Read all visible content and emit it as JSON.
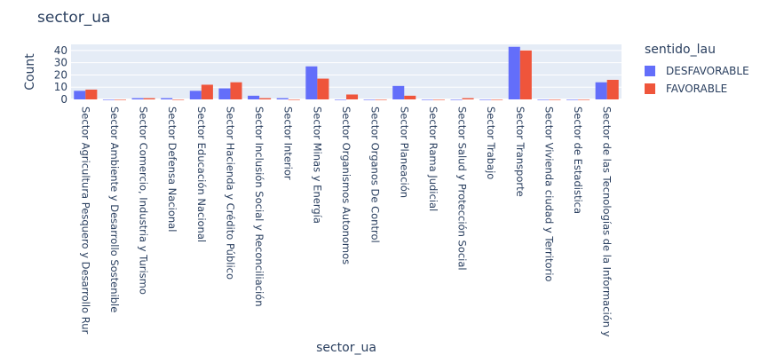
{
  "chart_data": {
    "type": "bar",
    "title": "sector_ua",
    "xlabel": "sector_ua",
    "ylabel": "Count",
    "ylim": [
      0,
      45
    ],
    "yticks": [
      0,
      10,
      20,
      30,
      40
    ],
    "grid": true,
    "legend_title": "sentido_lau",
    "legend_position": "right",
    "categories": [
      "Sector Agricultura Pesquero y Desarrollo Rur",
      "Sector Ambiente y Desarrollo Sostenible",
      "Sector Comercio, Industria y Turismo",
      "Sector Defensa Nacional",
      "Sector Educación Nacional",
      "Sector Hacienda y Crédito Público",
      "Sector Inclusión Social y Reconciliación",
      "Sector Interior",
      "Sector Minas y Energía",
      "Sector Organismos Autonomos",
      "Sector Organos De Control",
      "Sector Planeación",
      "Sector Rama Judicial",
      "Sector Salud y Protección Social",
      "Sector Trabajo",
      "Sector Transporte",
      "Sector Vivienda ciudad y Territorio",
      "Sector de Estadistica",
      "Sector de las Tecnologías de la Información y"
    ],
    "series": [
      {
        "name": "DESFAVORABLE",
        "color": "#636efa",
        "values": [
          7,
          0,
          1,
          1,
          7,
          9,
          3,
          1,
          27,
          0,
          0,
          11,
          0,
          0,
          0,
          43,
          0,
          0,
          14
        ]
      },
      {
        "name": "FAVORABLE",
        "color": "#ef553b",
        "values": [
          8,
          0,
          1,
          0,
          12,
          14,
          1,
          0,
          17,
          4,
          0,
          3,
          0,
          1,
          0,
          40,
          0,
          0,
          16
        ]
      }
    ]
  }
}
